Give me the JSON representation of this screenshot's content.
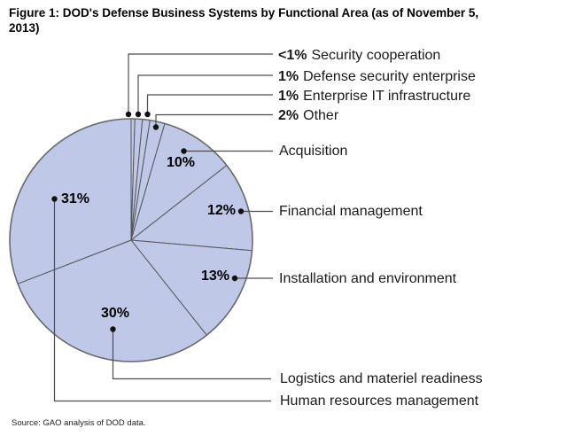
{
  "figure": {
    "title_line1": "Figure 1: DOD's Defense Business Systems by Functional Area (as of November 5,",
    "title_line2": "2013)",
    "source": "Source: GAO analysis of DOD data."
  },
  "chart_data": {
    "type": "pie",
    "title": "Figure 1: DOD's Defense Business Systems by Functional Area (as of November 5, 2013)",
    "source": "Source: GAO analysis of DOD data.",
    "start_angle": "top",
    "direction": "clockwise",
    "legend_position": "right-callouts",
    "slices": [
      {
        "label": "Security cooperation",
        "value": 0.5,
        "percent_label": "<1%"
      },
      {
        "label": "Defense security enterprise",
        "value": 1,
        "percent_label": "1%"
      },
      {
        "label": "Enterprise IT infrastructure",
        "value": 1,
        "percent_label": "1%"
      },
      {
        "label": "Other",
        "value": 2,
        "percent_label": "2%"
      },
      {
        "label": "Acquisition",
        "value": 10,
        "percent_label": "10%"
      },
      {
        "label": "Financial management",
        "value": 12,
        "percent_label": "12%"
      },
      {
        "label": "Installation and environment",
        "value": 13,
        "percent_label": "13%"
      },
      {
        "label": "Logistics and materiel readiness",
        "value": 30,
        "percent_label": "30%"
      },
      {
        "label": "Human resources management",
        "value": 31,
        "percent_label": "31%"
      }
    ],
    "colors": {
      "slice_fill": "#bfc8e6",
      "slice_border": "#55565c",
      "rim": "#6a6b70",
      "leader_line": "#4d4d4d",
      "dot": "#111111",
      "text": "#1a1a1a",
      "background": "#ffffff"
    }
  }
}
